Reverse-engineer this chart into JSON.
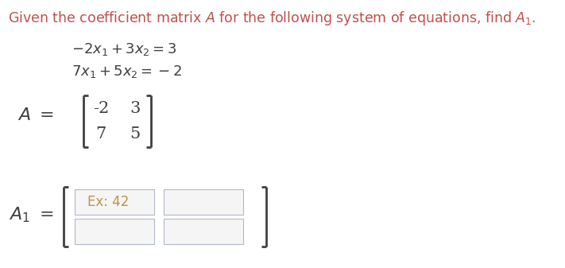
{
  "background_color": "#ffffff",
  "header_color": "#c0504d",
  "header_fontsize": 12.5,
  "eq_fontsize": 13,
  "eq_color": "#404040",
  "matrix_fontsize": 15,
  "bracket_color": "#404040",
  "box_fill": "#f5f5f5",
  "box_edge": "#b0b8c8",
  "placeholder_color": "#c0904d",
  "placeholder_fontsize": 12,
  "label_fontsize": 16
}
